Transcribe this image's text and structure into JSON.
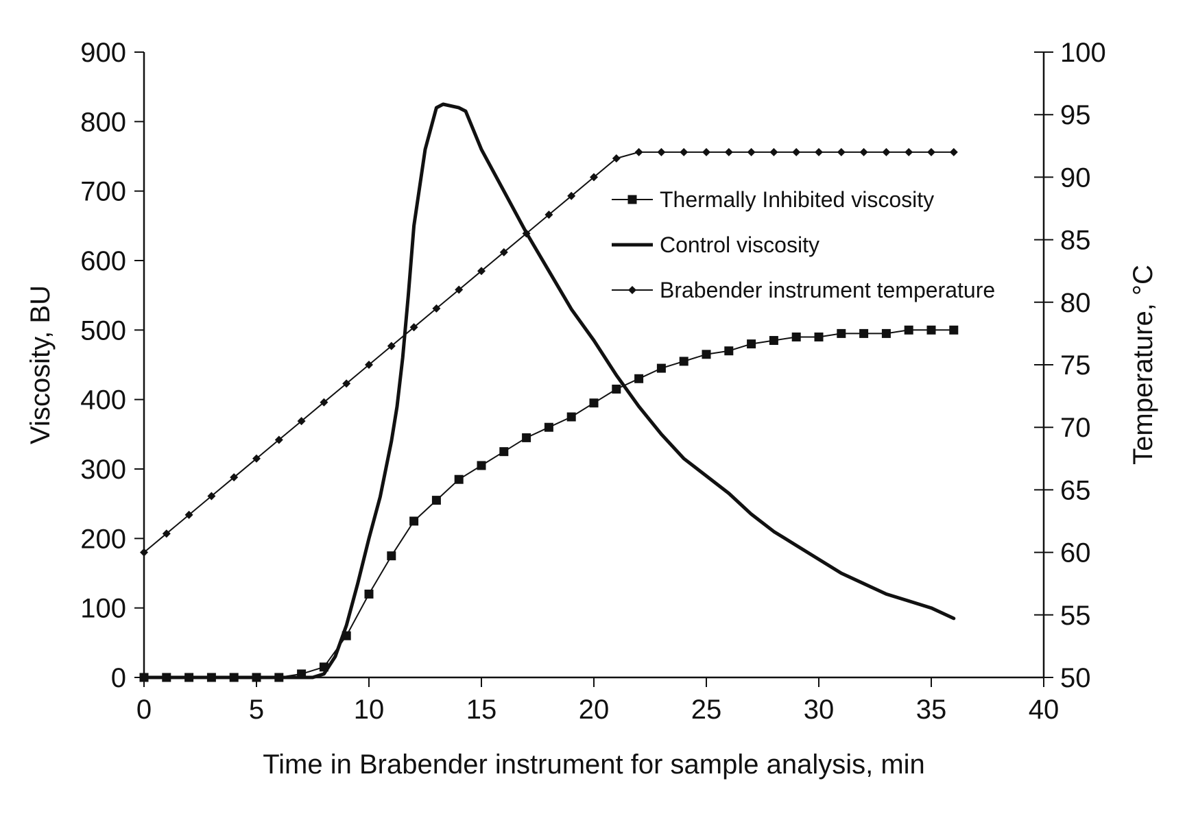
{
  "chart_data": {
    "type": "line",
    "title": "",
    "xlabel": "Time in Brabender instrument for sample analysis, min",
    "ylabel": "Viscosity, BU",
    "y2label": "Temperature, °C",
    "xlim": [
      0,
      40
    ],
    "ylim": [
      0,
      900
    ],
    "y2lim": [
      50,
      100
    ],
    "x_ticks": [
      0,
      5,
      10,
      15,
      20,
      25,
      30,
      35,
      40
    ],
    "y_ticks": [
      0,
      100,
      200,
      300,
      400,
      500,
      600,
      700,
      800,
      900
    ],
    "y2_ticks": [
      50,
      55,
      60,
      65,
      70,
      75,
      80,
      85,
      90,
      95,
      100
    ],
    "grid": false,
    "legend_position": "right",
    "series": [
      {
        "name": "Thermally Inhibited viscosity",
        "axis": "left",
        "marker": "square",
        "line": "thin",
        "x": [
          0,
          1,
          2,
          3,
          4,
          5,
          6,
          7,
          8,
          9,
          10,
          11,
          12,
          13,
          14,
          15,
          16,
          17,
          18,
          19,
          20,
          21,
          22,
          23,
          24,
          25,
          26,
          27,
          28,
          29,
          30,
          31,
          32,
          33,
          34,
          35,
          36
        ],
        "y": [
          0,
          0,
          0,
          0,
          0,
          0,
          0,
          5,
          15,
          60,
          120,
          175,
          225,
          255,
          285,
          305,
          325,
          345,
          360,
          375,
          395,
          415,
          430,
          445,
          455,
          465,
          470,
          480,
          485,
          490,
          490,
          495,
          495,
          495,
          500,
          500,
          500
        ]
      },
      {
        "name": "Control viscosity",
        "axis": "left",
        "marker": "none",
        "line": "thick",
        "x": [
          0,
          1,
          2,
          3,
          4,
          5,
          6,
          7,
          7.5,
          8,
          8.5,
          9,
          9.5,
          10,
          10.5,
          11,
          11.25,
          11.5,
          11.75,
          12,
          12.5,
          13,
          13.3,
          14,
          14.3,
          15,
          16,
          17,
          18,
          19,
          20,
          21,
          22,
          23,
          24,
          25,
          26,
          27,
          28,
          29,
          30,
          31,
          32,
          33,
          34,
          35,
          36
        ],
        "y": [
          0,
          0,
          0,
          0,
          0,
          0,
          0,
          0,
          0,
          5,
          30,
          75,
          135,
          200,
          260,
          340,
          390,
          460,
          550,
          650,
          760,
          820,
          825,
          820,
          815,
          760,
          700,
          640,
          585,
          530,
          485,
          435,
          390,
          350,
          315,
          290,
          265,
          235,
          210,
          190,
          170,
          150,
          135,
          120,
          110,
          100,
          85
        ]
      },
      {
        "name": "Brabender instrument temperature",
        "axis": "right",
        "marker": "diamond",
        "line": "thin",
        "x": [
          0,
          1,
          2,
          3,
          4,
          5,
          6,
          7,
          8,
          9,
          10,
          11,
          12,
          13,
          14,
          15,
          16,
          17,
          18,
          19,
          20,
          21,
          22,
          23,
          24,
          25,
          26,
          27,
          28,
          29,
          30,
          31,
          32,
          33,
          34,
          35,
          36
        ],
        "y": [
          60,
          61.5,
          63,
          64.5,
          66,
          67.5,
          69,
          70.5,
          72,
          73.5,
          75,
          76.5,
          78,
          79.5,
          81,
          82.5,
          84,
          85.5,
          87,
          88.5,
          90,
          91.5,
          92,
          92,
          92,
          92,
          92,
          92,
          92,
          92,
          92,
          92,
          92,
          92,
          92,
          92,
          92
        ]
      }
    ]
  }
}
